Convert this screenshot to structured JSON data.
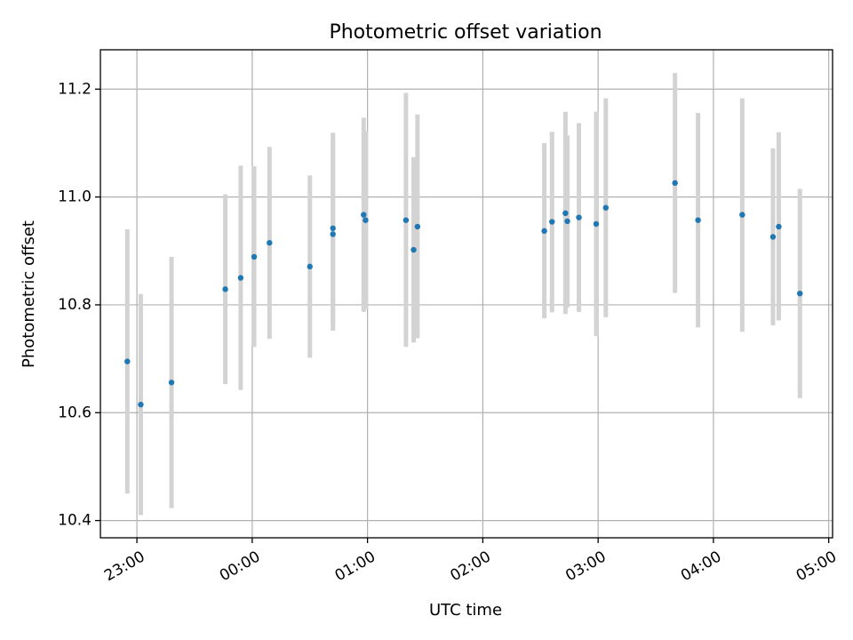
{
  "chart_data": {
    "type": "scatter",
    "title": "Photometric offset variation",
    "xlabel": "UTC time",
    "ylabel": "Photometric offset",
    "x_ticks": [
      "23:00",
      "00:00",
      "01:00",
      "02:00",
      "03:00",
      "04:00",
      "05:00"
    ],
    "y_ticks": [
      "10.4",
      "10.6",
      "10.8",
      "11.0",
      "11.2"
    ],
    "xlim": [
      "22:41",
      "05:02"
    ],
    "ylim": [
      10.368,
      11.273
    ],
    "grid": true,
    "series": [
      {
        "color": "#1f77b4",
        "errorbar_color": "#d3d3d3",
        "points": [
          {
            "x": "22:55",
            "y": 10.695,
            "yerr_low": 10.45,
            "yerr_high": 10.94
          },
          {
            "x": "23:02",
            "y": 10.615,
            "yerr_low": 10.41,
            "yerr_high": 10.82
          },
          {
            "x": "23:18",
            "y": 10.656,
            "yerr_low": 10.423,
            "yerr_high": 10.889
          },
          {
            "x": "23:46",
            "y": 10.829,
            "yerr_low": 10.653,
            "yerr_high": 11.005
          },
          {
            "x": "23:54",
            "y": 10.85,
            "yerr_low": 10.642,
            "yerr_high": 11.058
          },
          {
            "x": "00:01",
            "y": 10.889,
            "yerr_low": 10.722,
            "yerr_high": 11.057
          },
          {
            "x": "00:09",
            "y": 10.915,
            "yerr_low": 10.737,
            "yerr_high": 11.093
          },
          {
            "x": "00:30",
            "y": 10.871,
            "yerr_low": 10.702,
            "yerr_high": 11.04
          },
          {
            "x": "00:42",
            "y": 10.931,
            "yerr_low": 10.752,
            "yerr_high": 11.11
          },
          {
            "x": "00:42",
            "y": 10.942,
            "yerr_low": 10.765,
            "yerr_high": 11.119
          },
          {
            "x": "00:58",
            "y": 10.967,
            "yerr_low": 10.787,
            "yerr_high": 11.147
          },
          {
            "x": "00:59",
            "y": 10.957,
            "yerr_low": 10.792,
            "yerr_high": 11.122
          },
          {
            "x": "01:20",
            "y": 10.957,
            "yerr_low": 10.722,
            "yerr_high": 11.193
          },
          {
            "x": "01:24",
            "y": 10.902,
            "yerr_low": 10.73,
            "yerr_high": 11.074
          },
          {
            "x": "01:26",
            "y": 10.945,
            "yerr_low": 10.738,
            "yerr_high": 11.153
          },
          {
            "x": "02:32",
            "y": 10.937,
            "yerr_low": 10.775,
            "yerr_high": 11.1
          },
          {
            "x": "02:36",
            "y": 10.954,
            "yerr_low": 10.786,
            "yerr_high": 11.121
          },
          {
            "x": "02:43",
            "y": 10.97,
            "yerr_low": 10.783,
            "yerr_high": 11.158
          },
          {
            "x": "02:44",
            "y": 10.955,
            "yerr_low": 10.795,
            "yerr_high": 11.114
          },
          {
            "x": "02:50",
            "y": 10.962,
            "yerr_low": 10.787,
            "yerr_high": 11.137
          },
          {
            "x": "02:59",
            "y": 10.95,
            "yerr_low": 10.742,
            "yerr_high": 11.158
          },
          {
            "x": "03:04",
            "y": 10.98,
            "yerr_low": 10.777,
            "yerr_high": 11.183
          },
          {
            "x": "03:40",
            "y": 11.026,
            "yerr_low": 10.822,
            "yerr_high": 11.23
          },
          {
            "x": "03:52",
            "y": 10.957,
            "yerr_low": 10.758,
            "yerr_high": 11.156
          },
          {
            "x": "04:15",
            "y": 10.967,
            "yerr_low": 10.75,
            "yerr_high": 11.183
          },
          {
            "x": "04:31",
            "y": 10.926,
            "yerr_low": 10.762,
            "yerr_high": 11.09
          },
          {
            "x": "04:34",
            "y": 10.945,
            "yerr_low": 10.771,
            "yerr_high": 11.12
          },
          {
            "x": "04:45",
            "y": 10.821,
            "yerr_low": 10.627,
            "yerr_high": 11.015
          }
        ]
      }
    ]
  }
}
